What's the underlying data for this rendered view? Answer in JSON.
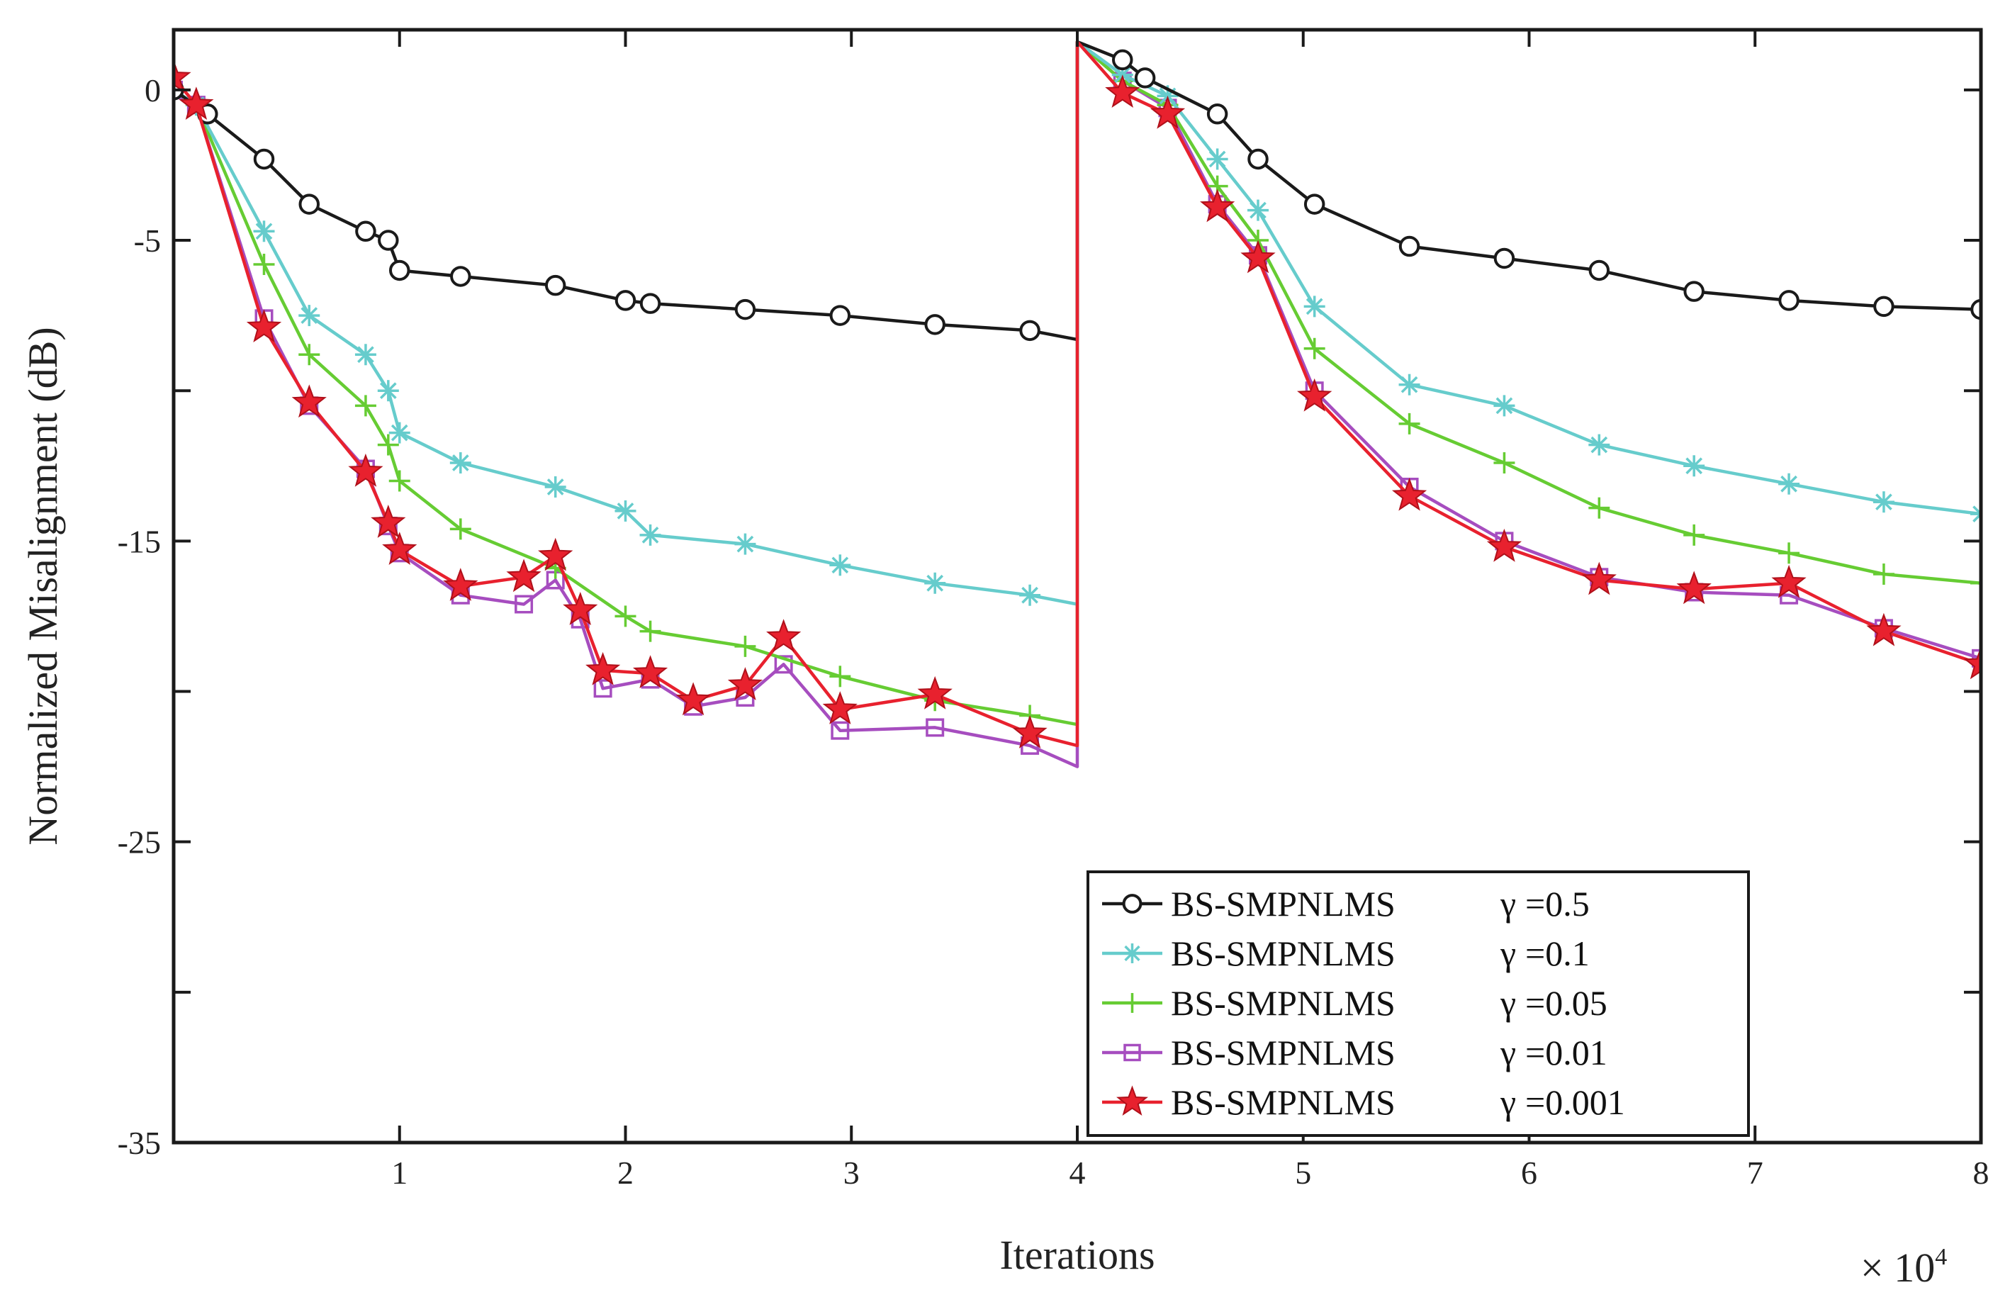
{
  "chart_data": {
    "type": "line",
    "title": "",
    "xlabel": "Iterations",
    "ylabel": "Normalized Misalignment (dB)",
    "x_exponent_label": "× 10",
    "x_exponent_power": "4",
    "xlim": [
      0,
      8
    ],
    "ylim": [
      -35,
      2
    ],
    "xticks": [
      1,
      2,
      3,
      4,
      5,
      6,
      7,
      8
    ],
    "xtick_labels": [
      "1",
      "2",
      "3",
      "4",
      "5",
      "6",
      "7",
      "8"
    ],
    "yticks": [
      0,
      -5,
      -15,
      -25,
      -35
    ],
    "ytick_labels": [
      "0",
      "-5",
      "-15",
      "-25",
      "-35"
    ],
    "ytick_marks": [
      0,
      -5,
      -10,
      -15,
      -20,
      -25,
      -30,
      -35
    ],
    "grid": false,
    "legend_position": "bottom-right",
    "series": [
      {
        "name": "BS-SMPNLMS",
        "gamma_symbol": "γ",
        "gamma_text": "=0.5",
        "color": "#1a1a1a",
        "marker": "circle",
        "x": [
          0,
          0.15,
          0.4,
          0.6,
          0.85,
          0.95,
          1.0,
          1.27,
          1.69,
          2.0,
          2.11,
          2.53,
          2.95,
          3.37,
          3.79,
          4.0,
          4.0,
          4.2,
          4.3,
          4.62,
          4.8,
          5.05,
          5.47,
          5.89,
          6.31,
          6.73,
          7.15,
          7.57,
          8.0
        ],
        "y": [
          0,
          -0.8,
          -2.3,
          -3.8,
          -4.7,
          -5.0,
          -6.0,
          -6.2,
          -6.5,
          -7.0,
          -7.1,
          -7.3,
          -7.5,
          -7.8,
          -8.0,
          -8.3,
          1.6,
          1.0,
          0.4,
          -0.8,
          -2.3,
          -3.8,
          -5.2,
          -5.6,
          -6.0,
          -6.7,
          -7.0,
          -7.2,
          -7.3
        ]
      },
      {
        "name": "BS-SMPNLMS",
        "gamma_symbol": "γ",
        "gamma_text": "=0.1",
        "color": "#66cccc",
        "marker": "asterisk",
        "x": [
          0,
          0.1,
          0.4,
          0.6,
          0.85,
          0.95,
          1.0,
          1.27,
          1.69,
          2.0,
          2.11,
          2.53,
          2.95,
          3.37,
          3.79,
          4.0,
          4.0,
          4.2,
          4.4,
          4.62,
          4.8,
          5.05,
          5.47,
          5.89,
          6.31,
          6.73,
          7.15,
          7.57,
          8.0
        ],
        "y": [
          0,
          -0.5,
          -4.7,
          -7.5,
          -8.8,
          -10.0,
          -11.4,
          -12.4,
          -13.2,
          -14.0,
          -14.8,
          -15.1,
          -15.8,
          -16.4,
          -16.8,
          -17.1,
          1.6,
          0.5,
          -0.2,
          -2.3,
          -4.0,
          -7.2,
          -9.8,
          -10.5,
          -11.8,
          -12.5,
          -13.1,
          -13.7,
          -14.1
        ]
      },
      {
        "name": "BS-SMPNLMS",
        "gamma_symbol": "γ",
        "gamma_text": "=0.05",
        "color": "#66cc33",
        "marker": "plus",
        "x": [
          0,
          0.1,
          0.4,
          0.6,
          0.85,
          0.95,
          1.0,
          1.27,
          1.69,
          2.0,
          2.11,
          2.53,
          2.95,
          3.37,
          3.79,
          4.0,
          4.0,
          4.2,
          4.4,
          4.62,
          4.8,
          5.05,
          5.47,
          5.89,
          6.31,
          6.73,
          7.15,
          7.57,
          8.0
        ],
        "y": [
          0,
          -0.5,
          -5.8,
          -8.8,
          -10.5,
          -11.8,
          -13.0,
          -14.6,
          -15.9,
          -17.5,
          -18.0,
          -18.5,
          -19.5,
          -20.3,
          -20.8,
          -21.1,
          1.6,
          0.3,
          -0.5,
          -3.2,
          -5.0,
          -8.6,
          -11.1,
          -12.4,
          -13.9,
          -14.8,
          -15.4,
          -16.1,
          -16.4
        ]
      },
      {
        "name": "BS-SMPNLMS",
        "gamma_symbol": "γ",
        "gamma_text": "=0.01",
        "color": "#a64dbf",
        "marker": "square",
        "x": [
          0,
          0.1,
          0.4,
          0.6,
          0.85,
          0.95,
          1.0,
          1.27,
          1.55,
          1.69,
          1.8,
          1.9,
          2.11,
          2.3,
          2.53,
          2.7,
          2.95,
          3.37,
          3.79,
          4.0,
          4.0,
          4.2,
          4.4,
          4.62,
          4.8,
          5.05,
          5.47,
          5.89,
          6.31,
          6.73,
          7.15,
          7.57,
          8.0
        ],
        "y": [
          0,
          -0.5,
          -7.6,
          -10.5,
          -12.6,
          -14.5,
          -15.4,
          -16.8,
          -17.1,
          -16.3,
          -17.6,
          -19.9,
          -19.6,
          -20.5,
          -20.2,
          -19.1,
          -21.3,
          -21.2,
          -21.8,
          -22.5,
          1.6,
          0.3,
          -0.6,
          -3.8,
          -5.5,
          -10.0,
          -13.2,
          -15.0,
          -16.2,
          -16.7,
          -16.8,
          -17.9,
          -18.9
        ]
      },
      {
        "name": "BS-SMPNLMS",
        "gamma_symbol": "γ",
        "gamma_text": "=0.001",
        "color": "#e8212e",
        "marker": "star",
        "x": [
          0,
          0.1,
          0.4,
          0.6,
          0.85,
          0.95,
          1.0,
          1.27,
          1.55,
          1.69,
          1.8,
          1.9,
          2.11,
          2.3,
          2.53,
          2.7,
          2.95,
          3.37,
          3.79,
          4.0,
          4.0,
          4.2,
          4.4,
          4.62,
          4.8,
          5.05,
          5.47,
          5.89,
          6.31,
          6.73,
          7.15,
          7.57,
          8.0
        ],
        "y": [
          0.4,
          -0.5,
          -7.9,
          -10.4,
          -12.7,
          -14.4,
          -15.3,
          -16.5,
          -16.2,
          -15.5,
          -17.3,
          -19.3,
          -19.4,
          -20.3,
          -19.8,
          -18.2,
          -20.6,
          -20.1,
          -21.4,
          -21.8,
          1.6,
          -0.1,
          -0.8,
          -3.9,
          -5.6,
          -10.2,
          -13.5,
          -15.2,
          -16.3,
          -16.6,
          -16.4,
          -18.0,
          -19.1
        ]
      }
    ]
  }
}
